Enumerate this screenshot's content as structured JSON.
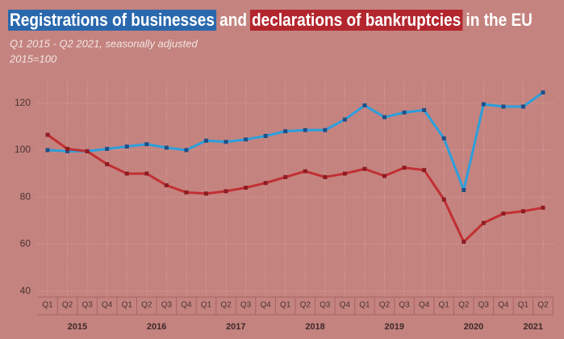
{
  "chart_data": {
    "type": "line",
    "title": [
      "Registrations of businesses",
      "and",
      "declarations of bankruptcies",
      "in the EU"
    ],
    "subtitle": [
      "Q1 2015  - Q2 2021, seasonally adjusted",
      "2015=100"
    ],
    "categories": [
      "Q1",
      "Q2",
      "Q3",
      "Q4",
      "Q1",
      "Q2",
      "Q3",
      "Q4",
      "Q1",
      "Q2",
      "Q3",
      "Q4",
      "Q1",
      "Q2",
      "Q3",
      "Q4",
      "Q1",
      "Q2",
      "Q3",
      "Q4",
      "Q1",
      "Q2",
      "Q3",
      "Q4",
      "Q1",
      "Q2"
    ],
    "year_labels": [
      "2015",
      "2016",
      "2017",
      "2018",
      "2019",
      "2020",
      "2021"
    ],
    "series": [
      {
        "color": "#2b9fdc",
        "highlight": "#2a68ad",
        "marker": "#1f4f86",
        "values": [
          100,
          99.5,
          99.5,
          100.5,
          101.5,
          102.5,
          101,
          100,
          104,
          103.5,
          104.5,
          106,
          108,
          108.5,
          108.5,
          113,
          119,
          114,
          116,
          117,
          105,
          83,
          119.5,
          118.5,
          118.5,
          124.5
        ]
      },
      {
        "color": "#c22f33",
        "highlight": "#b3262e",
        "marker": "#8e1c22",
        "values": [
          106.5,
          100.5,
          99.5,
          94,
          90,
          90,
          85,
          82,
          81.5,
          82.5,
          84,
          86,
          88.5,
          91,
          88.5,
          90,
          92,
          89,
          92.5,
          91.5,
          79,
          61,
          69,
          73,
          74,
          75.5
        ]
      }
    ],
    "ylim": [
      37.5,
      129.5
    ],
    "yticks": [
      40,
      60,
      80,
      100,
      120
    ],
    "grid": true
  }
}
